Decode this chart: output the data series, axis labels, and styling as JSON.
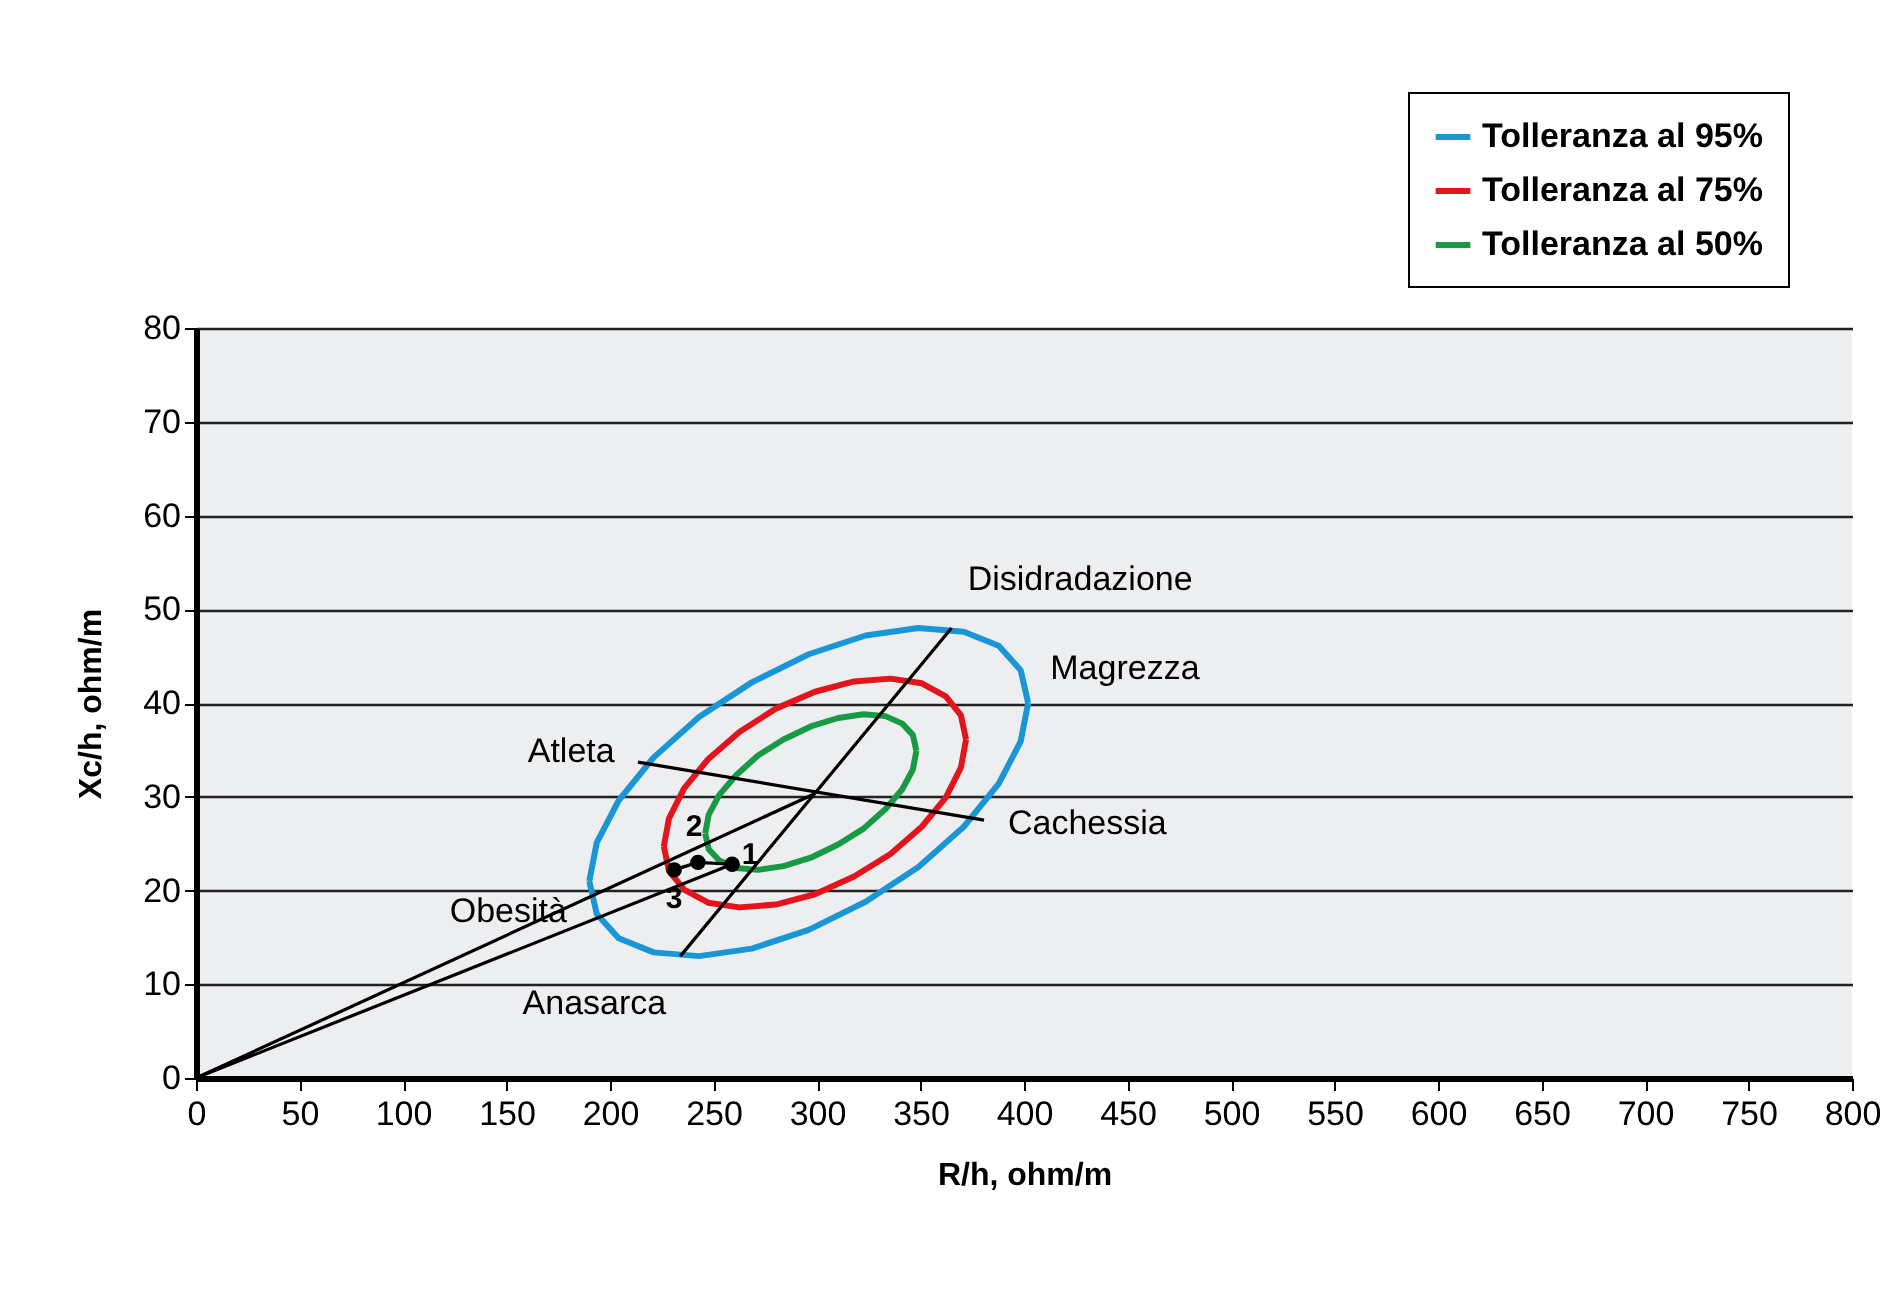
{
  "chart_data": {
    "type": "line",
    "xlabel": "R/h, ohm/m",
    "ylabel": "Xc/h, ohm/m",
    "xlim": [
      0,
      800
    ],
    "xticks": [
      0,
      50,
      100,
      150,
      200,
      250,
      300,
      350,
      400,
      450,
      500,
      550,
      600,
      650,
      700,
      750,
      800
    ],
    "ylim": [
      0,
      80
    ],
    "yticks": [
      0,
      10,
      20,
      30,
      40,
      50,
      60,
      70,
      80
    ],
    "grid": "y",
    "legend": "top right",
    "line_style": "solid",
    "series": [
      {
        "name": "Tolleranza al 95%",
        "color": "#1a96d6",
        "x": [
          190,
          193.6,
          204.2,
          221.1,
          243,
          268.5,
          296,
          323.5,
          349,
          370.9,
          387.8,
          398.4,
          402,
          null,
          190,
          193.6,
          204.2,
          221.1,
          243,
          268.5,
          296,
          323.5,
          349,
          370.9,
          387.8,
          398.4,
          402
        ],
        "values": [
          21.0,
          25.1,
          29.6,
          34.2,
          38.5,
          42.2,
          45.2,
          47.2,
          48.0,
          47.6,
          46.1,
          43.5,
          40.0,
          null,
          21.0,
          17.5,
          14.9,
          13.4,
          13.0,
          13.8,
          15.8,
          18.8,
          22.5,
          26.8,
          31.4,
          35.9,
          40.0
        ]
      },
      {
        "name": "Tolleranza al 75%",
        "color": "#e3141b",
        "x": [
          226,
          228.5,
          235.8,
          247.4,
          262.5,
          280.1,
          299,
          317.9,
          335.5,
          350.6,
          362.2,
          369.5,
          372,
          null,
          226,
          228.5,
          235.8,
          247.4,
          262.5,
          280.1,
          299,
          317.9,
          335.5,
          350.6,
          362.2,
          369.5,
          372
        ],
        "values": [
          24.7,
          27.7,
          30.9,
          34.0,
          36.9,
          39.4,
          41.2,
          42.3,
          42.6,
          42.1,
          40.7,
          38.7,
          36.1,
          null,
          24.7,
          22.1,
          20.1,
          18.7,
          18.2,
          18.5,
          19.6,
          21.5,
          23.9,
          26.8,
          29.9,
          33.1,
          36.1
        ]
      },
      {
        "name": "Tolleranza al 50%",
        "color": "#189a44",
        "x": [
          246,
          247.7,
          252.8,
          260.9,
          271.5,
          283.8,
          297,
          310.2,
          322.5,
          333.1,
          341.2,
          346.3,
          348,
          null,
          246,
          247.7,
          252.8,
          260.9,
          271.5,
          283.8,
          297,
          310.2,
          322.5,
          333.1,
          341.2,
          346.3,
          348
        ],
        "values": [
          26.1,
          28.1,
          30.2,
          32.3,
          34.4,
          36.1,
          37.5,
          38.4,
          38.8,
          38.6,
          37.8,
          36.6,
          34.9,
          null,
          26.1,
          24.4,
          23.2,
          22.4,
          22.2,
          22.6,
          23.5,
          24.9,
          26.6,
          28.7,
          30.8,
          32.9,
          34.9
        ]
      },
      {
        "color": "#000000",
        "x": [
          234,
          365
        ],
        "values": [
          13.0,
          48.0
        ]
      },
      {
        "color": "#000000",
        "x": [
          213.5,
          380.7
        ],
        "values": [
          33.7,
          27.5
        ]
      },
      {
        "color": "#000000",
        "x": [
          0,
          298.6
        ],
        "values": [
          0,
          30.3
        ]
      },
      {
        "color": "#000000",
        "x": [
          0,
          259
        ],
        "values": [
          0,
          22.8
        ]
      },
      {
        "color": "#000000",
        "marker": "circle",
        "x": [
          231,
          242.5,
          259
        ],
        "values": [
          22.2,
          23.0,
          22.8
        ]
      }
    ],
    "annotations": [
      {
        "text": "Disidradazione",
        "x": 365,
        "y": 48.0
      },
      {
        "text": "Atleta",
        "x": 213.5,
        "y": 33.7
      },
      {
        "text": "Magrezza",
        "x": 402,
        "y": 40.0
      },
      {
        "text": "Obesità",
        "x": 190,
        "y": 21.0
      },
      {
        "text": "Cachessia",
        "x": 380.7,
        "y": 27.5
      },
      {
        "text": "Anasarca",
        "x": 234,
        "y": 13.0
      },
      {
        "text": "1",
        "x": 259,
        "y": 22.8
      },
      {
        "text": "2",
        "x": 242.5,
        "y": 23.0
      },
      {
        "text": "3",
        "x": 231,
        "y": 22.2
      }
    ]
  }
}
